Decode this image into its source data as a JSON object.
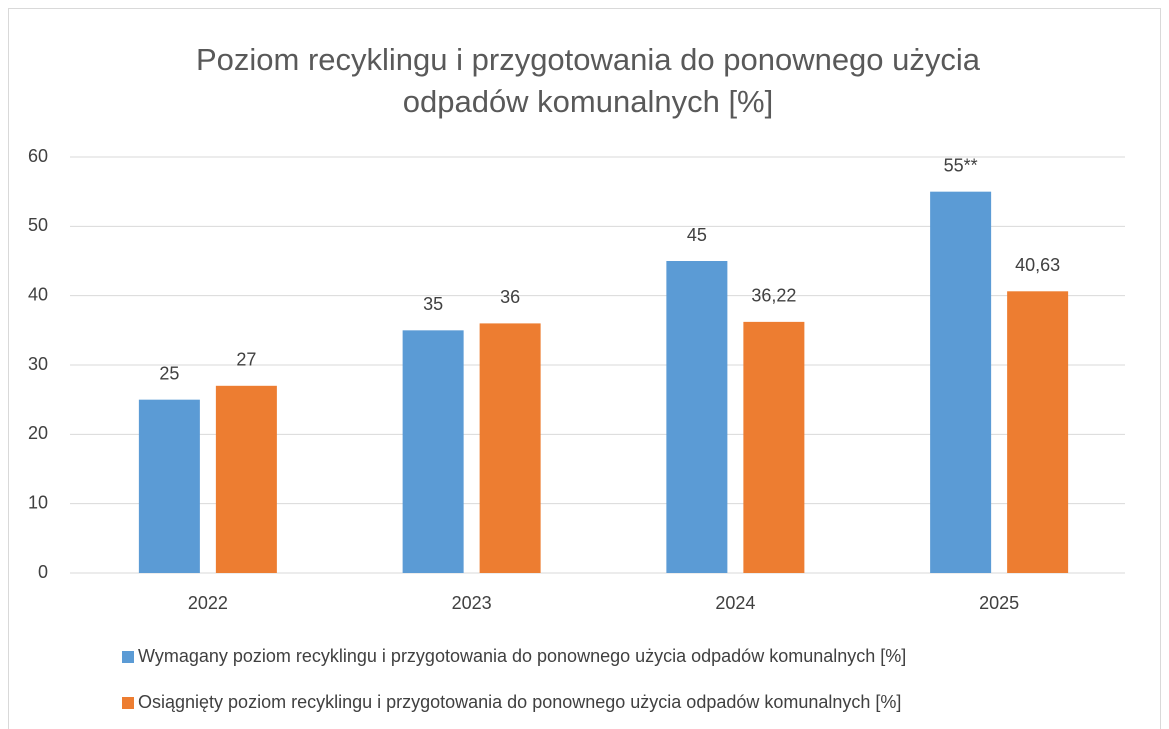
{
  "chart_data": {
    "type": "bar",
    "title": [
      "Poziom recyklingu i przygotowania do ponownego użycia",
      "odpadów komunalnych [%]"
    ],
    "categories": [
      "2022",
      "2023",
      "2024",
      "2025"
    ],
    "series": [
      {
        "name": "Wymagany poziom recyklingu i przygotowania do ponownego użycia odpadów komunalnych [%]",
        "color": "#5b9bd5",
        "values": [
          25,
          35,
          45,
          55
        ],
        "value_labels": [
          "25",
          "35",
          "45",
          "55**"
        ]
      },
      {
        "name": "Osiągnięty poziom recyklingu i przygotowania do ponownego użycia odpadów komunalnych [%]",
        "color": "#ed7d31",
        "values": [
          27,
          36,
          36.22,
          40.63
        ],
        "value_labels": [
          "27",
          "36",
          "36,22",
          "40,63"
        ]
      }
    ],
    "ylim": [
      0,
      60
    ],
    "yticks": [
      0,
      10,
      20,
      30,
      40,
      50,
      60
    ],
    "grid": true,
    "legend": "bottom"
  }
}
